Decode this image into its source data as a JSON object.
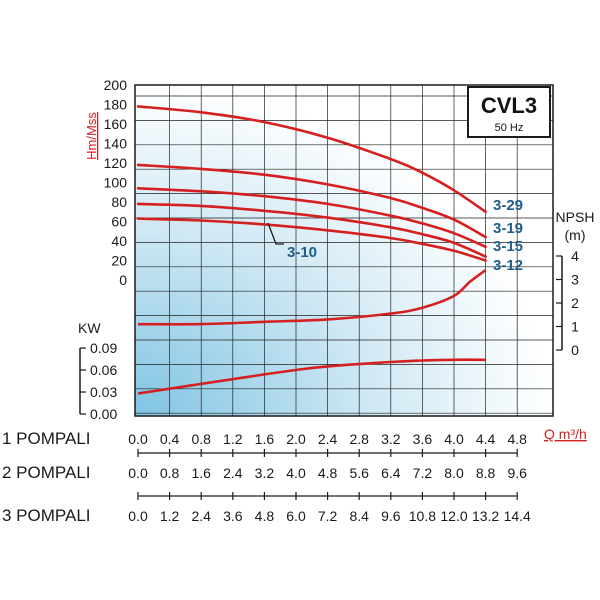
{
  "chart_data": {
    "type": "line",
    "title": "CVL3",
    "subtitle": "50 Hz",
    "head_axis": {
      "label": "Hm/Mss",
      "ticks": [
        "200",
        "180",
        "160",
        "140",
        "120",
        "100",
        "80",
        "60",
        "40",
        "20",
        "0"
      ],
      "range": [
        0,
        200
      ]
    },
    "npsh_axis": {
      "label": "NPSH",
      "unit": "(m)",
      "ticks": [
        "4",
        "3",
        "2",
        "1",
        "0"
      ],
      "range": [
        0,
        4
      ]
    },
    "power_axis": {
      "label": "KW",
      "ticks": [
        "0.09",
        "0.06",
        "0.03",
        "0.00"
      ],
      "range": [
        0,
        0.09
      ]
    },
    "flow_label": "Q m³/h",
    "flow_rows": [
      {
        "label": "1 POMPALI",
        "ticks": [
          "0.0",
          "0.4",
          "0.8",
          "1.2",
          "1.6",
          "2.0",
          "2.4",
          "2.8",
          "3.2",
          "3.6",
          "4.0",
          "4.4",
          "4.8"
        ]
      },
      {
        "label": "2 POMPALI",
        "ticks": [
          "0.0",
          "0.8",
          "1.6",
          "2.4",
          "3.2",
          "4.0",
          "4.8",
          "5.6",
          "6.4",
          "7.2",
          "8.0",
          "8.8",
          "9.6"
        ]
      },
      {
        "label": "3 POMPALI",
        "ticks": [
          "0.0",
          "1.2",
          "2.4",
          "3.6",
          "4.8",
          "6.0",
          "7.2",
          "8.4",
          "9.6",
          "10.8",
          "12.0",
          "13.2",
          "14.4"
        ]
      }
    ],
    "series": [
      {
        "name": "3-29",
        "x": [
          0,
          0.8,
          1.6,
          2.4,
          3.2,
          3.6,
          4.0,
          4.4
        ],
        "y": [
          178,
          172,
          162,
          146,
          124,
          110,
          92,
          70
        ]
      },
      {
        "name": "3-19",
        "x": [
          0,
          0.8,
          1.6,
          2.4,
          3.2,
          3.6,
          4.0,
          4.4
        ],
        "y": [
          118,
          114,
          108,
          98,
          84,
          74,
          62,
          44
        ]
      },
      {
        "name": "3-15",
        "x": [
          0,
          0.8,
          1.6,
          2.4,
          3.2,
          3.6,
          4.0,
          4.4
        ],
        "y": [
          94,
          91,
          86,
          78,
          66,
          58,
          48,
          34
        ]
      },
      {
        "name": "3-12",
        "x": [
          0,
          0.8,
          1.6,
          2.4,
          3.2,
          3.6,
          4.0,
          4.4
        ],
        "y": [
          78,
          76,
          71,
          64,
          54,
          47,
          38,
          24
        ]
      },
      {
        "name": "3-10",
        "x": [
          0,
          0.8,
          1.6,
          2.4,
          3.2,
          3.6,
          4.0,
          4.4
        ],
        "y": [
          63,
          61,
          57,
          51,
          43,
          37,
          30,
          20
        ]
      }
    ],
    "npsh_curve": {
      "x": [
        0,
        0.8,
        1.6,
        2.4,
        3.2,
        3.6,
        4.0,
        4.2,
        4.4
      ],
      "y": [
        1.1,
        1.1,
        1.2,
        1.3,
        1.55,
        1.8,
        2.3,
        2.9,
        3.4
      ]
    },
    "power_curve": {
      "x": [
        0,
        0.8,
        1.6,
        2.0,
        2.4,
        3.2,
        3.6,
        4.0,
        4.4
      ],
      "y": [
        0.028,
        0.041,
        0.054,
        0.06,
        0.065,
        0.071,
        0.073,
        0.074,
        0.074
      ]
    },
    "grid": true
  }
}
